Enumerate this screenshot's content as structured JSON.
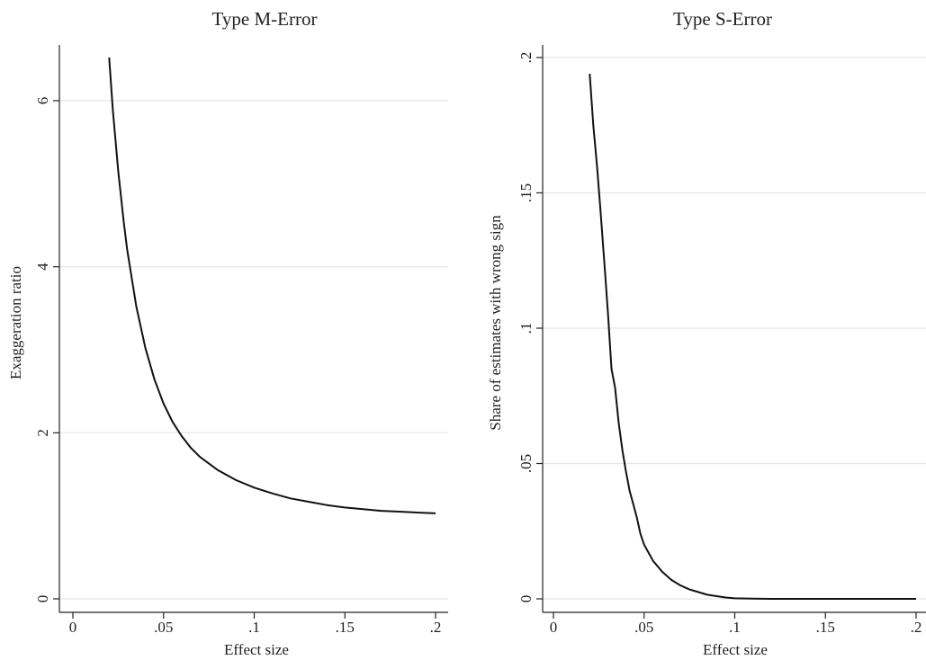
{
  "chart_data": [
    {
      "type": "line",
      "title": "Type M-Error",
      "xlabel": "Effect size",
      "ylabel": "Exaggeration ratio",
      "xlim": [
        0,
        0.2
      ],
      "ylim": [
        0,
        6
      ],
      "x_ticks": [
        {
          "value": 0,
          "label": "0"
        },
        {
          "value": 0.05,
          "label": ".05"
        },
        {
          "value": 0.1,
          "label": ".1"
        },
        {
          "value": 0.15,
          "label": ".15"
        },
        {
          "value": 0.2,
          "label": ".2"
        }
      ],
      "y_ticks": [
        {
          "value": 0,
          "label": "0"
        },
        {
          "value": 2,
          "label": "2"
        },
        {
          "value": 4,
          "label": "4"
        },
        {
          "value": 6,
          "label": "6"
        }
      ],
      "grid": "horizontal",
      "series": [
        {
          "x": [
            0.02,
            0.022,
            0.025,
            0.028,
            0.03,
            0.035,
            0.04,
            0.045,
            0.05,
            0.055,
            0.06,
            0.065,
            0.07,
            0.08,
            0.09,
            0.1,
            0.11,
            0.12,
            0.13,
            0.14,
            0.15,
            0.16,
            0.17,
            0.18,
            0.19,
            0.2
          ],
          "y": [
            6.52,
            5.9,
            5.15,
            4.55,
            4.2,
            3.52,
            3.02,
            2.64,
            2.35,
            2.13,
            1.96,
            1.82,
            1.71,
            1.55,
            1.43,
            1.34,
            1.27,
            1.21,
            1.17,
            1.13,
            1.1,
            1.08,
            1.06,
            1.05,
            1.04,
            1.03
          ]
        }
      ]
    },
    {
      "type": "line",
      "title": "Type S-Error",
      "xlabel": "Effect size",
      "ylabel": "Share of estimates with wrong sign",
      "xlim": [
        0,
        0.2
      ],
      "ylim": [
        0,
        0.2
      ],
      "x_ticks": [
        {
          "value": 0,
          "label": "0"
        },
        {
          "value": 0.05,
          "label": ".05"
        },
        {
          "value": 0.1,
          "label": ".1"
        },
        {
          "value": 0.15,
          "label": ".15"
        },
        {
          "value": 0.2,
          "label": ".2"
        }
      ],
      "y_ticks": [
        {
          "value": 0,
          "label": "0"
        },
        {
          "value": 0.05,
          "label": ".05"
        },
        {
          "value": 0.1,
          "label": ".1"
        },
        {
          "value": 0.15,
          "label": ".15"
        },
        {
          "value": 0.2,
          "label": ".2"
        }
      ],
      "grid": "horizontal",
      "series": [
        {
          "x": [
            0.02,
            0.022,
            0.024,
            0.026,
            0.028,
            0.03,
            0.032,
            0.034,
            0.036,
            0.038,
            0.04,
            0.042,
            0.044,
            0.046,
            0.048,
            0.05,
            0.055,
            0.06,
            0.065,
            0.07,
            0.075,
            0.08,
            0.085,
            0.09,
            0.095,
            0.1,
            0.11,
            0.12,
            0.14,
            0.16,
            0.18,
            0.2
          ],
          "y": [
            0.194,
            0.175,
            0.16,
            0.143,
            0.125,
            0.106,
            0.085,
            0.078,
            0.065,
            0.055,
            0.047,
            0.04,
            0.035,
            0.03,
            0.024,
            0.02,
            0.014,
            0.01,
            0.007,
            0.005,
            0.0035,
            0.0025,
            0.0015,
            0.001,
            0.0005,
            0.0002,
            0.0001,
            0.0,
            0.0,
            0.0,
            0.0,
            0.0
          ]
        }
      ]
    }
  ]
}
